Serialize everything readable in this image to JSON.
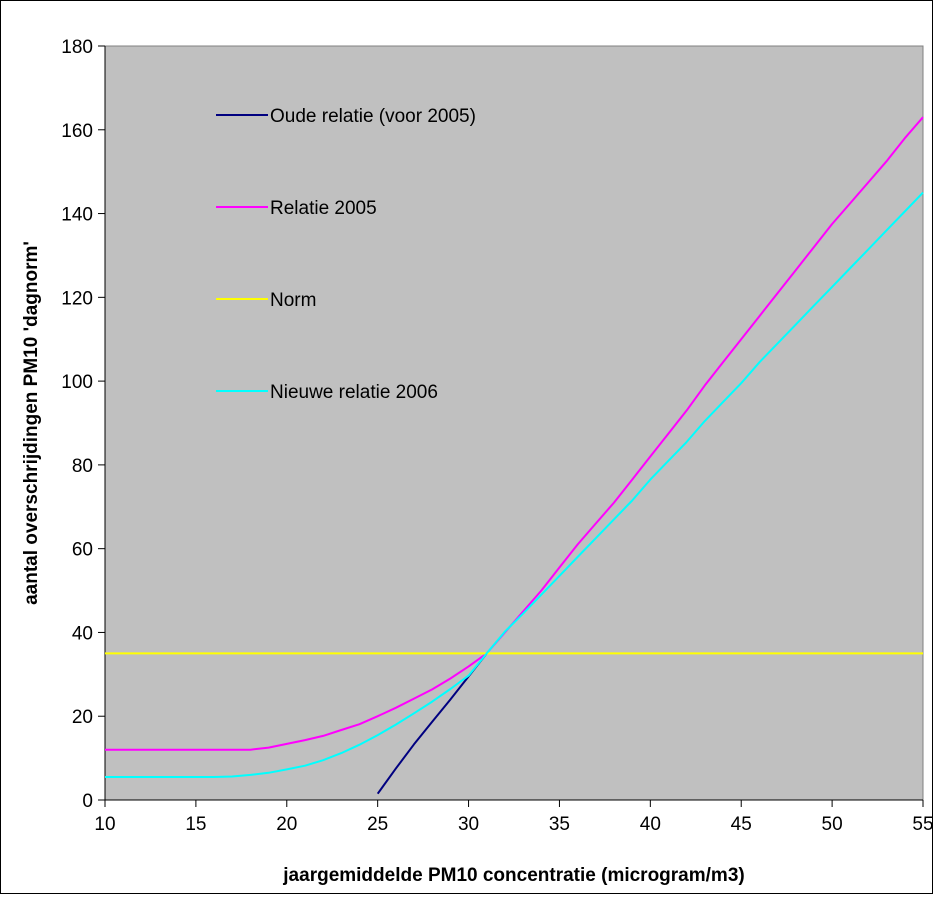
{
  "chart_data": {
    "type": "line",
    "title": "",
    "xlabel": "jaargemiddelde PM10 concentratie (microgram/m3)",
    "ylabel": "aantal overschrijdingen PM10 'dagnorm'",
    "xlim": [
      10,
      55
    ],
    "ylim": [
      0,
      180
    ],
    "x_ticks": [
      10,
      15,
      20,
      25,
      30,
      35,
      40,
      45,
      50,
      55
    ],
    "y_ticks": [
      0,
      20,
      40,
      60,
      80,
      100,
      120,
      140,
      160,
      180
    ],
    "grid": false,
    "legend_position": "top-left",
    "plot_background": "#c0c0c0",
    "series": [
      {
        "name": "Oude relatie (voor 2005)",
        "color": "#000080",
        "points": [
          [
            25,
            1.5
          ],
          [
            26,
            7.5
          ],
          [
            27,
            13.3
          ],
          [
            28,
            18.7
          ],
          [
            29,
            24
          ],
          [
            30,
            29.5
          ],
          [
            31,
            35
          ]
        ]
      },
      {
        "name": "Relatie 2005",
        "color": "#ff00ff",
        "points": [
          [
            10,
            12
          ],
          [
            12,
            12
          ],
          [
            14,
            12
          ],
          [
            16,
            12
          ],
          [
            18,
            12
          ],
          [
            19,
            12.5
          ],
          [
            20,
            13.4
          ],
          [
            21,
            14.3
          ],
          [
            22,
            15.3
          ],
          [
            23,
            16.7
          ],
          [
            24,
            18.1
          ],
          [
            25,
            20
          ],
          [
            26,
            22
          ],
          [
            27,
            24.2
          ],
          [
            28,
            26.4
          ],
          [
            29,
            29
          ],
          [
            30,
            31.9
          ],
          [
            31,
            35
          ],
          [
            32,
            40
          ],
          [
            33,
            45
          ],
          [
            34,
            50
          ],
          [
            35,
            55.5
          ],
          [
            36,
            61
          ],
          [
            37,
            66
          ],
          [
            38,
            71
          ],
          [
            39,
            76.5
          ],
          [
            40,
            82
          ],
          [
            41,
            87.5
          ],
          [
            42,
            93
          ],
          [
            43,
            99
          ],
          [
            44,
            104.5
          ],
          [
            45,
            110
          ],
          [
            46,
            115.5
          ],
          [
            47,
            121
          ],
          [
            48,
            126.5
          ],
          [
            49,
            132
          ],
          [
            50,
            137.5
          ],
          [
            51,
            142.5
          ],
          [
            52,
            147.5
          ],
          [
            53,
            152.5
          ],
          [
            54,
            158
          ],
          [
            55,
            163
          ]
        ]
      },
      {
        "name": "Norm",
        "color": "#ffff00",
        "points": [
          [
            10,
            35
          ],
          [
            55,
            35
          ]
        ]
      },
      {
        "name": "Nieuwe relatie 2006",
        "color": "#00ffff",
        "points": [
          [
            10,
            5.5
          ],
          [
            12,
            5.5
          ],
          [
            14,
            5.5
          ],
          [
            16,
            5.5
          ],
          [
            17,
            5.6
          ],
          [
            18,
            6
          ],
          [
            19,
            6.5
          ],
          [
            20,
            7.3
          ],
          [
            21,
            8.2
          ],
          [
            22,
            9.5
          ],
          [
            23,
            11.2
          ],
          [
            24,
            13.2
          ],
          [
            25,
            15.5
          ],
          [
            26,
            18
          ],
          [
            27,
            20.7
          ],
          [
            28,
            23.5
          ],
          [
            29,
            26.5
          ],
          [
            30,
            29.7
          ],
          [
            31,
            35
          ],
          [
            32,
            40.2
          ],
          [
            33,
            44.5
          ],
          [
            34,
            49
          ],
          [
            35,
            53.5
          ],
          [
            36,
            58
          ],
          [
            37,
            62.5
          ],
          [
            38,
            67
          ],
          [
            39,
            71.5
          ],
          [
            40,
            76.5
          ],
          [
            41,
            81
          ],
          [
            42,
            85.5
          ],
          [
            43,
            90.5
          ],
          [
            44,
            95
          ],
          [
            45,
            99.5
          ],
          [
            46,
            104.5
          ],
          [
            47,
            109
          ],
          [
            48,
            113.5
          ],
          [
            49,
            118
          ],
          [
            50,
            122.5
          ],
          [
            51,
            127
          ],
          [
            52,
            131.5
          ],
          [
            53,
            136
          ],
          [
            54,
            140.5
          ],
          [
            55,
            145
          ]
        ]
      }
    ]
  }
}
